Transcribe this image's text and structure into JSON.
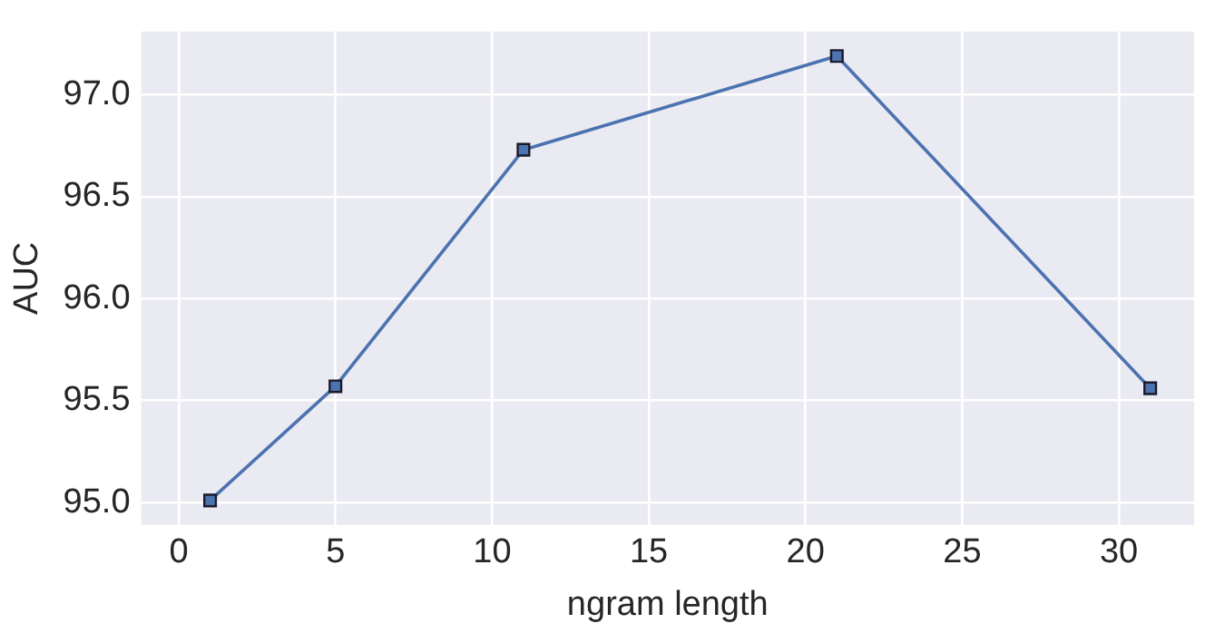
{
  "chart_data": {
    "type": "line",
    "xlabel": "ngram length",
    "ylabel": "AUC",
    "x": [
      1,
      5,
      11,
      21,
      31
    ],
    "series": [
      {
        "color": "#4c72b0",
        "values": [
          95.01,
          95.57,
          96.73,
          97.19,
          95.56
        ]
      }
    ],
    "xlim": [
      -1.2,
      32.4
    ],
    "ylim": [
      94.89,
      97.31
    ],
    "xticks": [
      0,
      5,
      10,
      15,
      20,
      25,
      30
    ],
    "yticks": [
      {
        "value": 95,
        "label": "95.0"
      },
      {
        "value": 95.5,
        "label": "95.5"
      },
      {
        "value": 96,
        "label": "96.0"
      },
      {
        "value": 96.5,
        "label": "96.5"
      },
      {
        "value": 97,
        "label": "97.0"
      }
    ],
    "grid": true,
    "marker": "square",
    "line_style": "solid",
    "legend": false
  }
}
